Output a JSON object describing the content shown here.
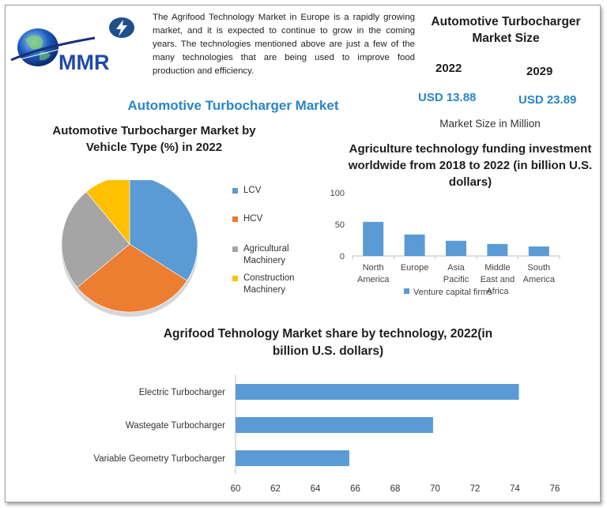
{
  "header": {
    "intro_text": "The Agrifood Technology Market in Europe is a rapidly growing market, and it is expected to continue to grow in the coming years. The technologies mentioned above are just a few of the many technologies that are being used to improve food production and efficiency.",
    "logo_text": "MMR",
    "bolt_icon": "lightning-bolt-icon"
  },
  "market_size": {
    "title": "Automotive Turbocharger Market Size",
    "year_a": "2022",
    "year_b": "2029",
    "value_a": "USD 13.88",
    "value_b": "USD 23.89",
    "unit_note": "Market Size in Million"
  },
  "main_title": "Automotive Turbocharger Market",
  "colors": {
    "accent": "#2a85c6",
    "bar": "#5b9bd5",
    "pie": [
      "#5b9bd5",
      "#ed7d31",
      "#a5a5a5",
      "#ffc000"
    ]
  },
  "chart_data": [
    {
      "type": "pie",
      "title": "Automotive Turbocharger Market by Vehicle Type (%) in 2022",
      "labels": [
        "LCV",
        "HCV",
        "Agricultural Machinery",
        "Construction Machinery"
      ],
      "values": [
        34,
        30,
        25,
        11
      ],
      "legend": "right"
    },
    {
      "type": "bar",
      "title": "Agriculture technology funding investment worldwide from 2018 to 2022 (in billion U.S. dollars)",
      "categories": [
        "North America",
        "Europe",
        "Asia Pacific",
        "Middle East and Africa",
        "South America"
      ],
      "series": [
        {
          "name": "Venture capital firms",
          "values": [
            54,
            34,
            24,
            19,
            15
          ]
        }
      ],
      "ylim": [
        0,
        100
      ],
      "yticks": [
        "0",
        "50",
        "100"
      ],
      "legend": "bottom"
    },
    {
      "type": "bar",
      "orientation": "horizontal",
      "title": "Agrifood Tehnology Market share by technology, 2022(in billion U.S. dollars)",
      "categories": [
        "Electric Turbocharger",
        "Wastegate Turbocharger",
        "Variable Geometry Turbocharger"
      ],
      "values": [
        74.2,
        69.9,
        65.7
      ],
      "xlim": [
        60,
        76
      ],
      "xticks": [
        "60",
        "62",
        "64",
        "66",
        "68",
        "70",
        "72",
        "74",
        "76"
      ]
    }
  ]
}
